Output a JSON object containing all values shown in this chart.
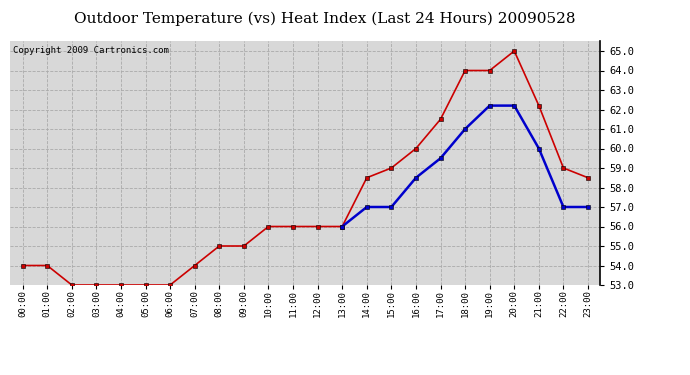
{
  "title": "Outdoor Temperature (vs) Heat Index (Last 24 Hours) 20090528",
  "copyright": "Copyright 2009 Cartronics.com",
  "hours": [
    "00:00",
    "01:00",
    "02:00",
    "03:00",
    "04:00",
    "05:00",
    "06:00",
    "07:00",
    "08:00",
    "09:00",
    "10:00",
    "11:00",
    "12:00",
    "13:00",
    "14:00",
    "15:00",
    "16:00",
    "17:00",
    "18:00",
    "19:00",
    "20:00",
    "21:00",
    "22:00",
    "23:00"
  ],
  "temp_red": [
    54.0,
    54.0,
    53.0,
    53.0,
    53.0,
    53.0,
    53.0,
    54.0,
    55.0,
    55.0,
    56.0,
    56.0,
    56.0,
    56.0,
    58.5,
    59.0,
    60.0,
    61.5,
    64.0,
    64.0,
    65.0,
    62.2,
    59.0,
    58.5
  ],
  "heat_blue_x": [
    13,
    14,
    15,
    16,
    17,
    18,
    19,
    20,
    21,
    22,
    23
  ],
  "heat_blue": [
    56.0,
    57.0,
    57.0,
    58.5,
    59.5,
    61.0,
    62.2,
    62.2,
    60.0,
    57.0,
    57.0
  ],
  "red_color": "#cc0000",
  "blue_color": "#0000cc",
  "bg_color": "#ffffff",
  "plot_bg_color": "#d8d8d8",
  "grid_color": "#aaaaaa",
  "ylim_min": 53.0,
  "ylim_max": 65.5,
  "title_fontsize": 11,
  "copyright_fontsize": 6.5
}
